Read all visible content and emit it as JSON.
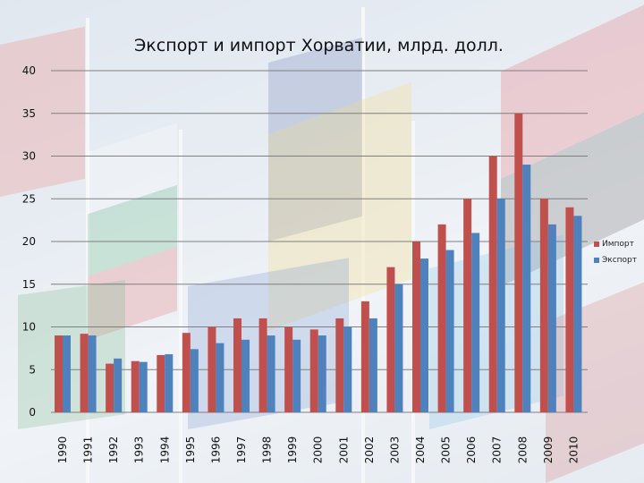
{
  "chart_data": {
    "type": "bar",
    "title": "Экспорт и импорт Хорватии, млрд. долл.",
    "categories": [
      "1990",
      "1991",
      "1992",
      "1993",
      "1994",
      "1995",
      "1996",
      "1997",
      "1998",
      "1999",
      "2000",
      "2001",
      "2002",
      "2003",
      "2004",
      "2005",
      "2006",
      "2007",
      "2008",
      "2009",
      "2010"
    ],
    "series": [
      {
        "name": "Импорт",
        "color": "#c0504d",
        "values": [
          9,
          9.2,
          5.7,
          6,
          6.7,
          9.3,
          10,
          11,
          11,
          10,
          9.7,
          11,
          13,
          17,
          20,
          22,
          25,
          30,
          35,
          25,
          24
        ]
      },
      {
        "name": "Экспорт",
        "color": "#4f81bd",
        "values": [
          9,
          9,
          6.3,
          5.9,
          6.8,
          7.4,
          8.1,
          8.5,
          9,
          8.5,
          9,
          10,
          11,
          15,
          18,
          19,
          21,
          25,
          29,
          22,
          23
        ]
      }
    ],
    "yticks": [
      0,
      5,
      10,
      15,
      20,
      25,
      30,
      35,
      40
    ],
    "ylim": [
      0,
      40
    ],
    "grid": true,
    "legend_position": "right"
  }
}
